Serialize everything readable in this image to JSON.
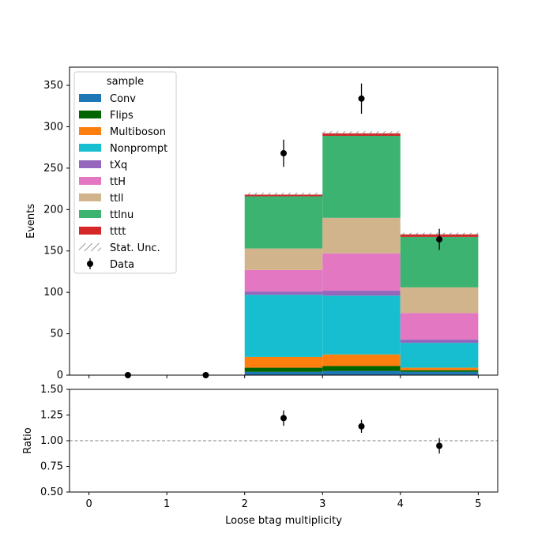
{
  "chart_data": [
    {
      "type": "bar",
      "stacked": true,
      "xlabel": "",
      "ylabel": "Events",
      "xlim": [
        -0.25,
        5.25
      ],
      "ylim": [
        0,
        372
      ],
      "yticks": [
        0,
        50,
        100,
        150,
        200,
        250,
        300,
        350
      ],
      "bins": [
        [
          2,
          3
        ],
        [
          3,
          4
        ],
        [
          4,
          5
        ]
      ],
      "series": [
        {
          "name": "Conv",
          "color": "#1f77b4",
          "values": [
            4,
            5,
            4
          ]
        },
        {
          "name": "Flips",
          "color": "#006400",
          "values": [
            5,
            6,
            2
          ]
        },
        {
          "name": "Multiboson",
          "color": "#ff7f0e",
          "values": [
            13,
            14,
            3
          ]
        },
        {
          "name": "Nonprompt",
          "color": "#17becf",
          "values": [
            75,
            71,
            30
          ]
        },
        {
          "name": "tXq",
          "color": "#9467bd",
          "values": [
            4,
            6,
            4
          ]
        },
        {
          "name": "ttH",
          "color": "#e377c2",
          "values": [
            26,
            45,
            32
          ]
        },
        {
          "name": "ttll",
          "color": "#d2b48c",
          "values": [
            26,
            43,
            31
          ]
        },
        {
          "name": "ttlnu",
          "color": "#3cb371",
          "values": [
            63,
            99,
            61
          ]
        },
        {
          "name": "tttt",
          "color": "#d62728",
          "values": [
            2,
            3,
            3
          ]
        }
      ],
      "stat_unc": {
        "name": "Stat. Unc.",
        "halfwidth": [
          2.5,
          2.5,
          2
        ]
      },
      "data": {
        "name": "Data",
        "x": [
          0.5,
          1.5,
          2.5,
          3.5,
          4.5
        ],
        "y": [
          0,
          0,
          268,
          334,
          164
        ],
        "yerr": [
          0,
          0,
          16.4,
          18.3,
          12.8
        ]
      },
      "legend": {
        "title": "sample",
        "position": "top-left"
      }
    },
    {
      "type": "scatter",
      "xlabel": "Loose btag multiplicity",
      "ylabel": "Ratio",
      "xlim": [
        -0.25,
        5.25
      ],
      "ylim": [
        0.5,
        1.5
      ],
      "yticks": [
        "0.50",
        "0.75",
        "1.00",
        "1.25",
        "1.50"
      ],
      "xticks": [
        "0",
        "1",
        "2",
        "3",
        "4",
        "5"
      ],
      "reference_line": 1.0,
      "points": {
        "x": [
          2.5,
          3.5,
          4.5
        ],
        "y": [
          1.22,
          1.14,
          0.95
        ],
        "yerr": [
          0.075,
          0.063,
          0.075
        ]
      }
    }
  ]
}
